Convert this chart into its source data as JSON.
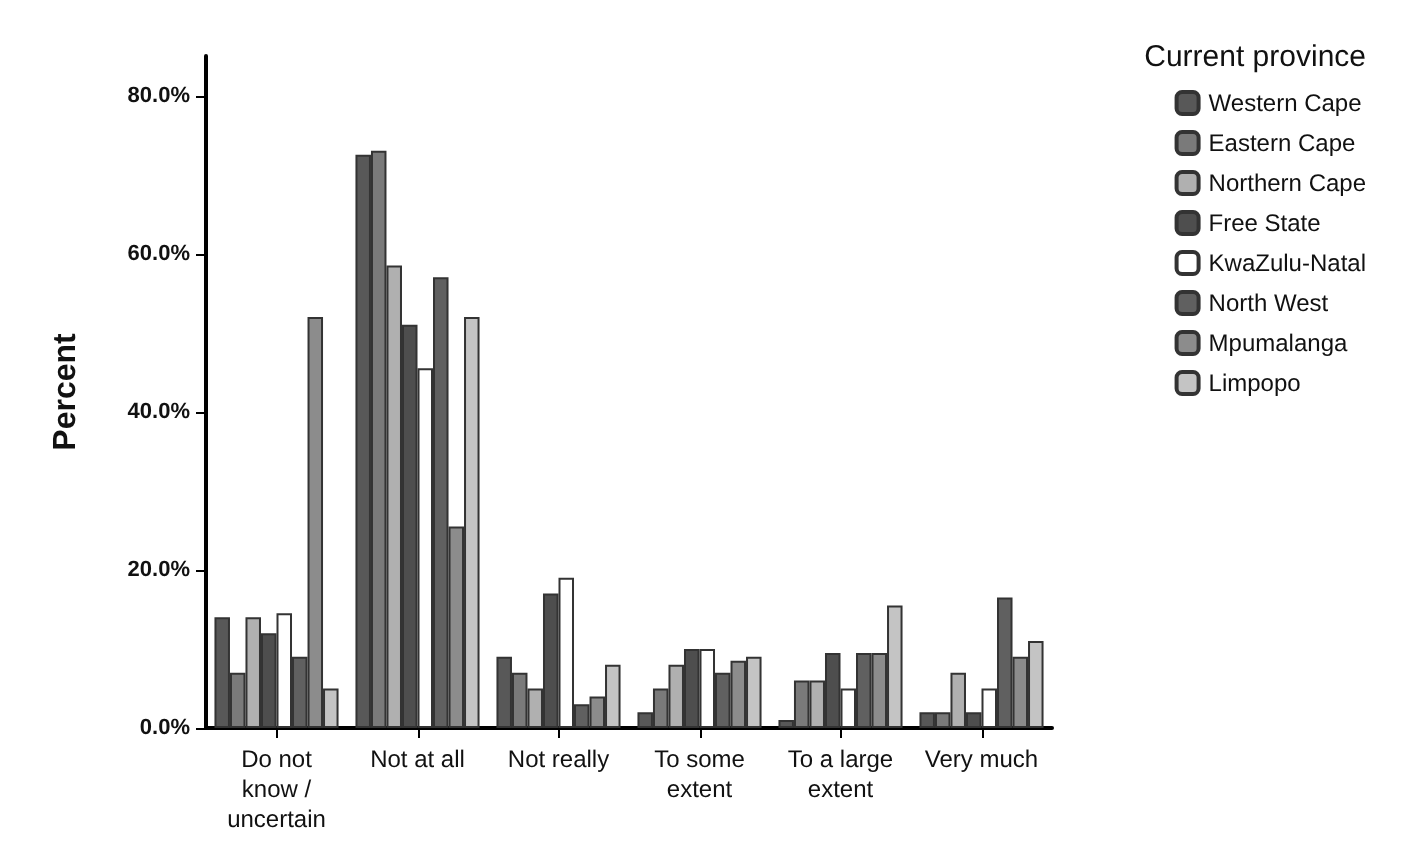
{
  "chart_data": {
    "type": "bar",
    "ylabel": "Percent",
    "legend_title": "Current province",
    "legend": "top right",
    "grid": false,
    "categories": [
      "Do not know / uncertain",
      "Not at all",
      "Not really",
      "To some extent",
      "To a large extent",
      "Very much"
    ],
    "ylim": [
      0,
      85
    ],
    "yticks": [
      {
        "value": 0,
        "label": "0.0%"
      },
      {
        "value": 20,
        "label": "20.0%"
      },
      {
        "value": 40,
        "label": "40.0%"
      },
      {
        "value": 60,
        "label": "60.0%"
      },
      {
        "value": 80,
        "label": "80.0%"
      }
    ],
    "series": [
      {
        "name": "Western Cape",
        "color": "#585858",
        "values": [
          14,
          72.5,
          9,
          2,
          1,
          2
        ]
      },
      {
        "name": "Eastern Cape",
        "color": "#7a7a7a",
        "values": [
          7,
          73,
          7,
          5,
          6,
          2
        ]
      },
      {
        "name": "Northern Cape",
        "color": "#b0b0b0",
        "values": [
          14,
          58.5,
          5,
          8,
          6,
          7
        ]
      },
      {
        "name": "Free State",
        "color": "#4e4e4e",
        "values": [
          12,
          51,
          17,
          10,
          9.5,
          2
        ]
      },
      {
        "name": "KwaZulu-Natal",
        "color": "#ffffff",
        "values": [
          14.5,
          45.5,
          19,
          10,
          5,
          5
        ]
      },
      {
        "name": "North West",
        "color": "#606060",
        "values": [
          9,
          57,
          3,
          7,
          9.5,
          16.5
        ]
      },
      {
        "name": "Mpumalanga",
        "color": "#8c8c8c",
        "values": [
          52,
          25.5,
          4,
          8.5,
          9.5,
          9
        ]
      },
      {
        "name": "Limpopo",
        "color": "#c4c4c4",
        "values": [
          5,
          52,
          8,
          9,
          15.5,
          11
        ]
      }
    ]
  }
}
